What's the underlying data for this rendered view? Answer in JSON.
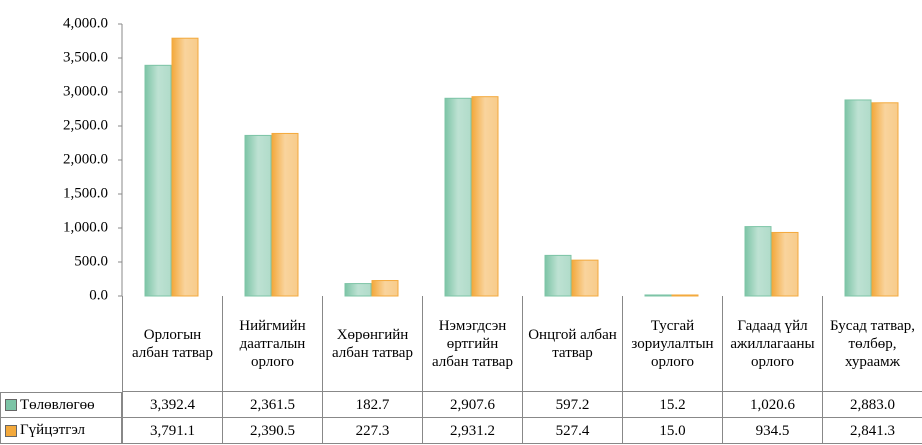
{
  "chart_data": {
    "type": "bar",
    "categories": [
      "Орлогын албан татвар",
      "Нийгмийн даатгалын орлого",
      "Хөрөнгийн албан татвар",
      "Нэмэгдсэн өртгийн албан татвар",
      "Онцгой албан татвар",
      "Тусгай зориулалтын орлого",
      "Гадаад үйл ажиллагааны орлого",
      "Бусад татвар, төлбөр, хураамж"
    ],
    "series": [
      {
        "name": "Төлөвлөгөө",
        "color": "#7cc4a6",
        "values": [
          3392.4,
          2361.5,
          182.7,
          2907.6,
          597.2,
          15.2,
          1020.6,
          2883.0
        ],
        "value_labels": [
          "3,392.4",
          "2,361.5",
          "182.7",
          "2,907.6",
          "597.2",
          "15.2",
          "1,020.6",
          "2,883.0"
        ]
      },
      {
        "name": "Гүйцэтгэл",
        "color": "#f3a93c",
        "values": [
          3791.1,
          2390.5,
          227.3,
          2931.2,
          527.4,
          15.0,
          934.5,
          2841.3
        ],
        "value_labels": [
          "3,791.1",
          "2,390.5",
          "227.3",
          "2,931.2",
          "527.4",
          "15.0",
          "934.5",
          "2,841.3"
        ]
      }
    ],
    "ylim": [
      0,
      4000
    ],
    "yticks": [
      {
        "value": 0,
        "label": "0.0"
      },
      {
        "value": 500,
        "label": "500.0"
      },
      {
        "value": 1000,
        "label": "1,000.0"
      },
      {
        "value": 1500,
        "label": "1,500.0"
      },
      {
        "value": 2000,
        "label": "2,000.0"
      },
      {
        "value": 2500,
        "label": "2,500.0"
      },
      {
        "value": 3000,
        "label": "3,000.0"
      },
      {
        "value": 3500,
        "label": "3,500.0"
      },
      {
        "value": 4000,
        "label": "4,000.0"
      }
    ]
  }
}
